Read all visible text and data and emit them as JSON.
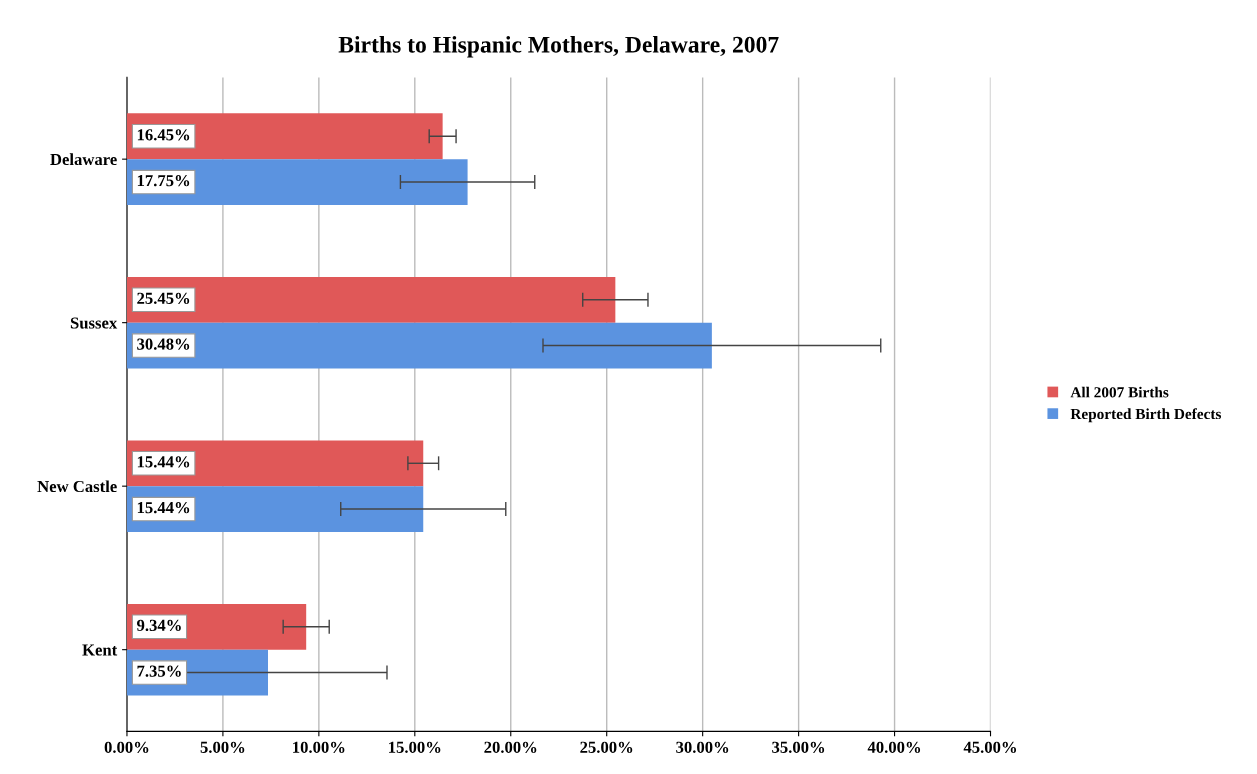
{
  "chart_data": {
    "type": "bar",
    "orientation": "horizontal",
    "title": "Births to Hispanic Mothers, Delaware, 2007",
    "categories": [
      "Delaware",
      "Sussex",
      "New Castle",
      "Kent"
    ],
    "series": [
      {
        "name": "All 2007 Births",
        "color": "#e05858",
        "values": [
          16.45,
          25.45,
          15.44,
          9.34
        ],
        "errors": [
          0.7,
          1.7,
          0.8,
          1.2
        ],
        "value_labels": [
          "16.45%",
          "25.45%",
          "15.44%",
          "9.34%"
        ]
      },
      {
        "name": "Reported Birth Defects",
        "color": "#5b93e0",
        "values": [
          17.75,
          30.48,
          15.44,
          7.35
        ],
        "errors": [
          3.5,
          8.8,
          4.3,
          6.2
        ],
        "value_labels": [
          "17.75%",
          "30.48%",
          "15.44%",
          "7.35%"
        ]
      }
    ],
    "xlim": [
      0,
      45
    ],
    "xticks": [
      {
        "value": 0,
        "label": "0.00%"
      },
      {
        "value": 5,
        "label": "5.00%"
      },
      {
        "value": 10,
        "label": "10.00%"
      },
      {
        "value": 15,
        "label": "15.00%"
      },
      {
        "value": 20,
        "label": "20.00%"
      },
      {
        "value": 25,
        "label": "25.00%"
      },
      {
        "value": 30,
        "label": "30.00%"
      },
      {
        "value": 35,
        "label": "35.00%"
      },
      {
        "value": 40,
        "label": "40.00%"
      },
      {
        "value": 45,
        "label": "45.00%"
      }
    ],
    "grid": "x",
    "legend": "right"
  }
}
